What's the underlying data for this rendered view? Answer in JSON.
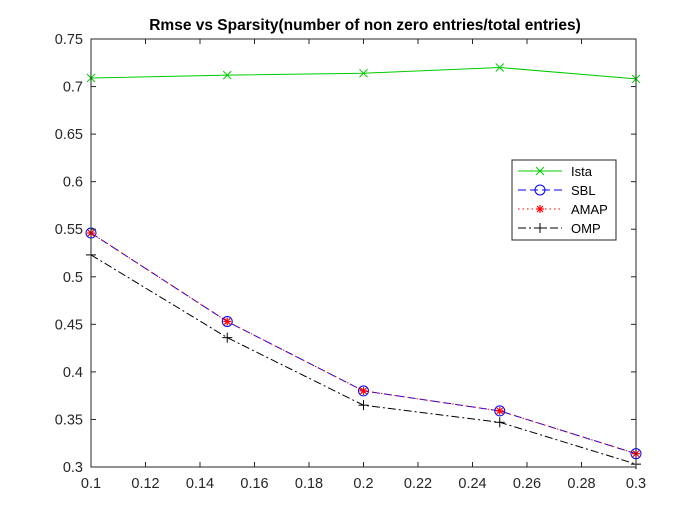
{
  "chart_data": {
    "type": "line",
    "title": "Rmse vs Sparsity(number of non zero entries/total entries)",
    "xlabel": "",
    "ylabel": "",
    "xlim": [
      0.1,
      0.3
    ],
    "ylim": [
      0.3,
      0.75
    ],
    "xticks": [
      0.1,
      0.12,
      0.14,
      0.16,
      0.18,
      0.2,
      0.22,
      0.24,
      0.26,
      0.28,
      0.3
    ],
    "xtick_labels": [
      "0.1",
      "0.12",
      "0.14",
      "0.16",
      "0.18",
      "0.2",
      "0.22",
      "0.24",
      "0.26",
      "0.28",
      "0.3"
    ],
    "yticks": [
      0.3,
      0.35,
      0.4,
      0.45,
      0.5,
      0.55,
      0.6,
      0.65,
      0.7,
      0.75
    ],
    "ytick_labels": [
      "0.3",
      "0.35",
      "0.4",
      "0.45",
      "0.5",
      "0.55",
      "0.6",
      "0.65",
      "0.7",
      "0.75"
    ],
    "grid": false,
    "legend_position": "right",
    "x": [
      0.1,
      0.15,
      0.2,
      0.25,
      0.3
    ],
    "series": [
      {
        "name": "Ista",
        "values": [
          0.709,
          0.712,
          0.714,
          0.72,
          0.708
        ],
        "color": "#00cc00",
        "dash": "solid",
        "marker": "x"
      },
      {
        "name": "SBL",
        "values": [
          0.546,
          0.453,
          0.38,
          0.359,
          0.314
        ],
        "color": "#0000ff",
        "dash": "dash",
        "marker": "circle"
      },
      {
        "name": "AMAP",
        "values": [
          0.546,
          0.453,
          0.38,
          0.359,
          0.314
        ],
        "color": "#ff0000",
        "dash": "dot",
        "marker": "asterisk"
      },
      {
        "name": "OMP",
        "values": [
          0.523,
          0.436,
          0.365,
          0.347,
          0.303
        ],
        "color": "#000000",
        "dash": "dashdot",
        "marker": "plus"
      }
    ]
  }
}
